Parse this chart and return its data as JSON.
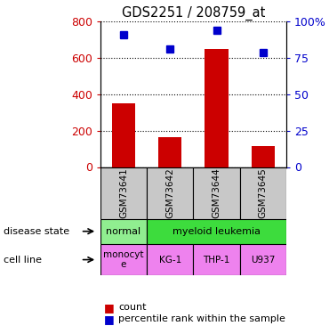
{
  "title": "GDS2251 / 208759_at",
  "samples": [
    "GSM73641",
    "GSM73642",
    "GSM73644",
    "GSM73645"
  ],
  "counts": [
    350,
    165,
    650,
    115
  ],
  "percentiles": [
    91,
    81,
    94,
    79
  ],
  "ylim_left": [
    0,
    800
  ],
  "ylim_right": [
    0,
    100
  ],
  "yticks_left": [
    0,
    200,
    400,
    600,
    800
  ],
  "yticks_right": [
    0,
    25,
    50,
    75,
    100
  ],
  "yticklabels_right": [
    "0",
    "25",
    "50",
    "75",
    "100%"
  ],
  "bar_color": "#cc0000",
  "dot_color": "#0000cc",
  "disease_state_color_normal": "#90ee90",
  "disease_state_color_myeloid": "#3ddc3d",
  "cell_line_color": "#ee82ee",
  "sample_box_color": "#c8c8c8",
  "left_label_color": "#cc0000",
  "right_label_color": "#0000cc"
}
